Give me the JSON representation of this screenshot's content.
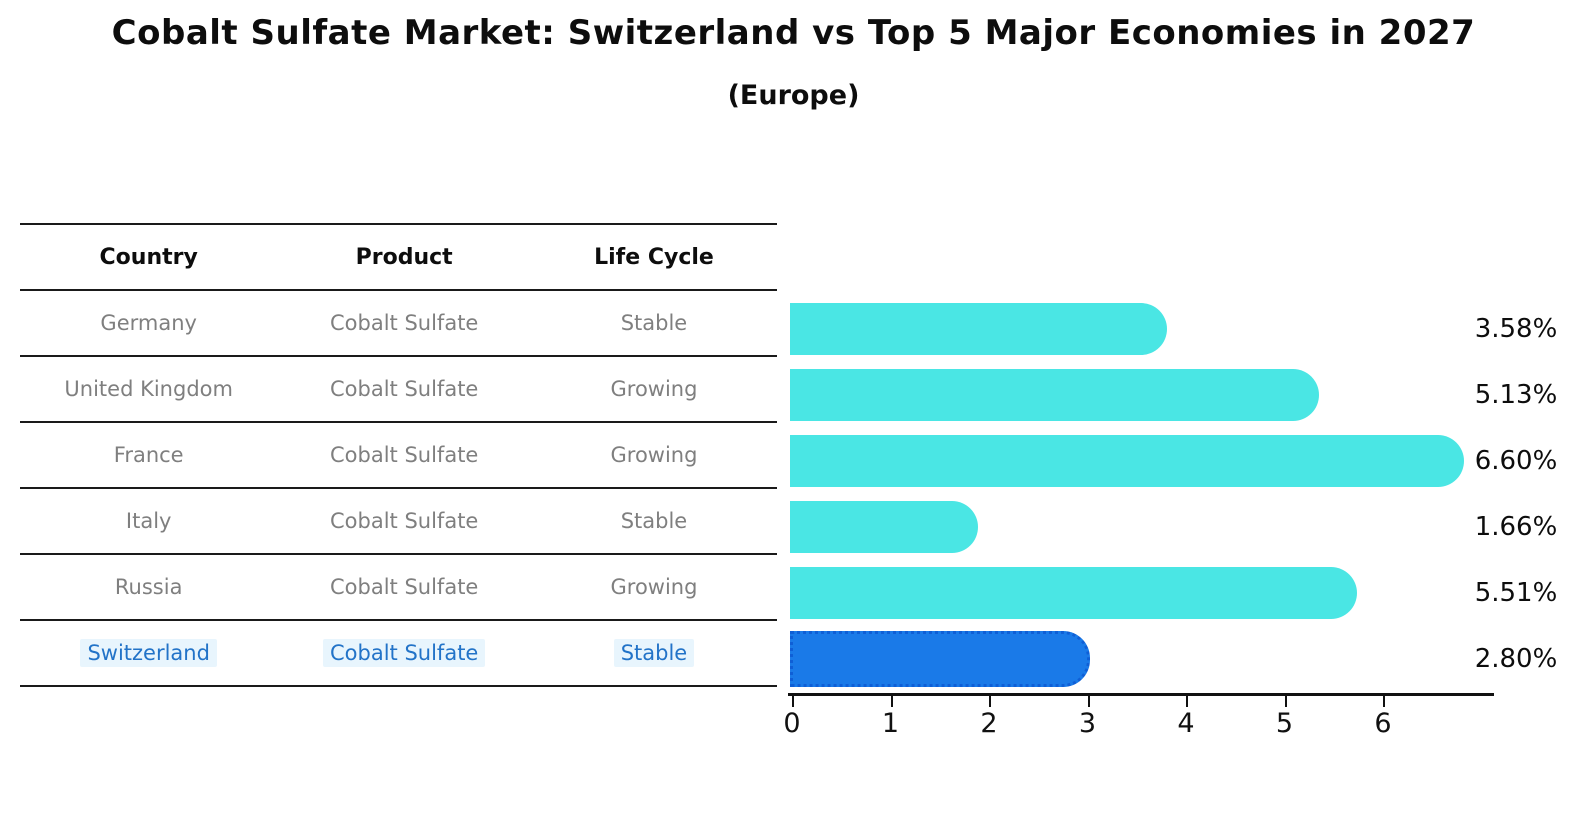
{
  "page": {
    "title": "Cobalt Sulfate Market: Switzerland vs Top 5 Major Economies in 2027",
    "subtitle": "(Europe)"
  },
  "table": {
    "headers": [
      "Country",
      "Product",
      "Life Cycle"
    ],
    "rows": [
      {
        "country": "Germany",
        "product": "Cobalt Sulfate",
        "life_cycle": "Stable",
        "highlighted": false
      },
      {
        "country": "United Kingdom",
        "product": "Cobalt Sulfate",
        "life_cycle": "Growing",
        "highlighted": false
      },
      {
        "country": "France",
        "product": "Cobalt Sulfate",
        "life_cycle": "Growing",
        "highlighted": false
      },
      {
        "country": "Italy",
        "product": "Cobalt Sulfate",
        "life_cycle": "Stable",
        "highlighted": false
      },
      {
        "country": "Russia",
        "product": "Cobalt Sulfate",
        "life_cycle": "Growing",
        "highlighted": false
      },
      {
        "country": "Switzerland",
        "product": "Cobalt Sulfate",
        "life_cycle": "Stable",
        "highlighted": true
      }
    ]
  },
  "chart_data": {
    "type": "bar",
    "orientation": "horizontal",
    "title": "Cobalt Sulfate Market: Switzerland vs Top 5 Major Economies in 2027",
    "subtitle": "(Europe)",
    "categories": [
      "Germany",
      "United Kingdom",
      "France",
      "Italy",
      "Russia",
      "Switzerland"
    ],
    "values": [
      3.58,
      5.13,
      6.6,
      1.66,
      5.51,
      2.8
    ],
    "value_labels": [
      "3.58%",
      "5.13%",
      "6.60%",
      "1.66%",
      "5.51%",
      "2.80%"
    ],
    "unit": "%",
    "x_ticks": [
      0,
      1,
      2,
      3,
      4,
      5,
      6
    ],
    "xlim": [
      0,
      7
    ],
    "grid": false,
    "legend": "none",
    "highlight_index": 5,
    "bar_color": "#4ae6e4",
    "highlight_bar_color": "#1a7ae8",
    "highlight_border_color": "#0f5fd6",
    "highlight_text_color": "#2273c8",
    "axis_color": "#111111",
    "text_gray": "#7f7f7f"
  }
}
